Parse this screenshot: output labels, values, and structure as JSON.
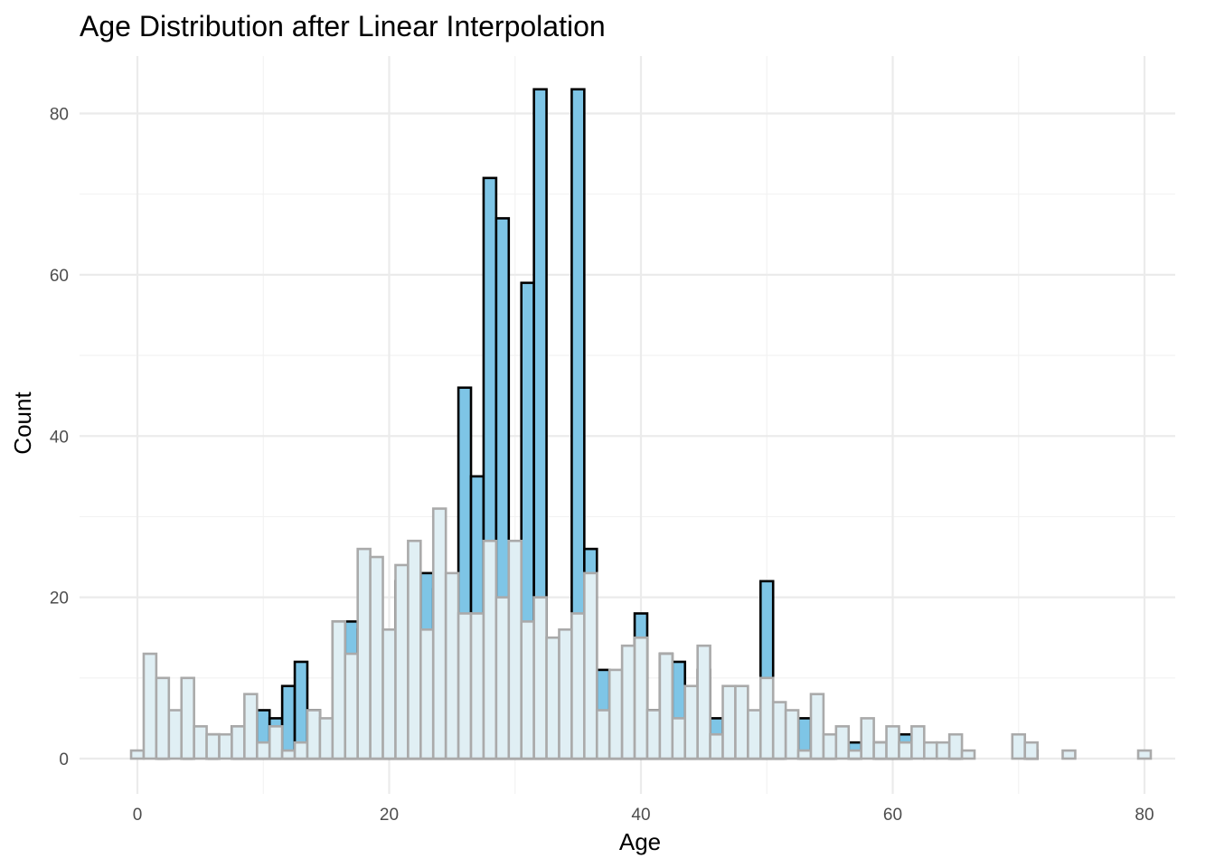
{
  "chart_data": {
    "type": "bar",
    "title": "Age Distribution after Linear Interpolation",
    "xlabel": "Age",
    "ylabel": "Count",
    "xlim": [
      -1,
      81
    ],
    "ylim": [
      0,
      85
    ],
    "x_ticks": [
      0,
      20,
      40,
      60,
      80
    ],
    "y_ticks": [
      0,
      20,
      40,
      60,
      80
    ],
    "grid": true,
    "legend": "none",
    "bin_width": 1,
    "series": [
      {
        "style": "interpolated",
        "fill": "#7ec5e6",
        "stroke": "#000000",
        "x": [
          0,
          1,
          2,
          3,
          4,
          5,
          6,
          7,
          8,
          9,
          10,
          11,
          12,
          13,
          14,
          15,
          16,
          17,
          18,
          19,
          20,
          21,
          22,
          23,
          24,
          25,
          26,
          27,
          28,
          29,
          30,
          31,
          32,
          33,
          34,
          35,
          36,
          37,
          38,
          39,
          40,
          41,
          42,
          43,
          44,
          45,
          46,
          47,
          48,
          49,
          50,
          51,
          52,
          53,
          54,
          55,
          56,
          57,
          58,
          59,
          60,
          61,
          62,
          63,
          64,
          65,
          66,
          67,
          68,
          69,
          70,
          71,
          72,
          73,
          74,
          75,
          76,
          77,
          78,
          79,
          80
        ],
        "values": [
          0,
          0,
          1,
          0,
          3,
          0,
          3,
          0,
          4,
          3,
          6,
          5,
          9,
          12,
          6,
          4,
          17,
          17,
          16,
          16,
          12,
          22,
          14,
          23,
          21,
          20,
          46,
          35,
          72,
          67,
          20,
          59,
          83,
          9,
          7,
          83,
          26,
          11,
          3,
          11,
          18,
          6,
          13,
          12,
          2,
          11,
          5,
          2,
          5,
          2,
          22,
          2,
          0,
          5,
          1,
          2,
          0,
          2,
          0,
          2,
          2,
          3,
          0,
          0,
          0,
          1,
          0,
          0,
          0,
          0,
          0,
          1,
          0,
          0,
          0,
          0,
          0,
          0,
          0,
          0,
          0
        ]
      },
      {
        "style": "original",
        "fill": "#e0eff4",
        "stroke": "#aaaaaa",
        "x": [
          0,
          1,
          2,
          3,
          4,
          5,
          6,
          7,
          8,
          9,
          10,
          11,
          12,
          13,
          14,
          15,
          16,
          17,
          18,
          19,
          20,
          21,
          22,
          23,
          24,
          25,
          26,
          27,
          28,
          29,
          30,
          31,
          32,
          33,
          34,
          35,
          36,
          37,
          38,
          39,
          40,
          41,
          42,
          43,
          44,
          45,
          46,
          47,
          48,
          49,
          50,
          51,
          52,
          53,
          54,
          55,
          56,
          57,
          58,
          59,
          60,
          61,
          62,
          63,
          64,
          65,
          66,
          67,
          68,
          69,
          70,
          71,
          72,
          73,
          74,
          75,
          76,
          77,
          78,
          79,
          80
        ],
        "values": [
          1,
          13,
          10,
          6,
          10,
          4,
          3,
          3,
          4,
          8,
          2,
          4,
          1,
          2,
          6,
          5,
          17,
          13,
          26,
          25,
          16,
          24,
          27,
          16,
          31,
          23,
          18,
          18,
          27,
          20,
          27,
          17,
          20,
          15,
          16,
          18,
          23,
          6,
          11,
          14,
          15,
          6,
          13,
          5,
          9,
          14,
          3,
          9,
          9,
          6,
          10,
          7,
          6,
          1,
          8,
          3,
          4,
          1,
          5,
          2,
          4,
          2,
          4,
          2,
          2,
          3,
          1,
          0,
          0,
          0,
          3,
          2,
          0,
          0,
          1,
          0,
          0,
          0,
          0,
          0,
          1
        ]
      }
    ]
  }
}
